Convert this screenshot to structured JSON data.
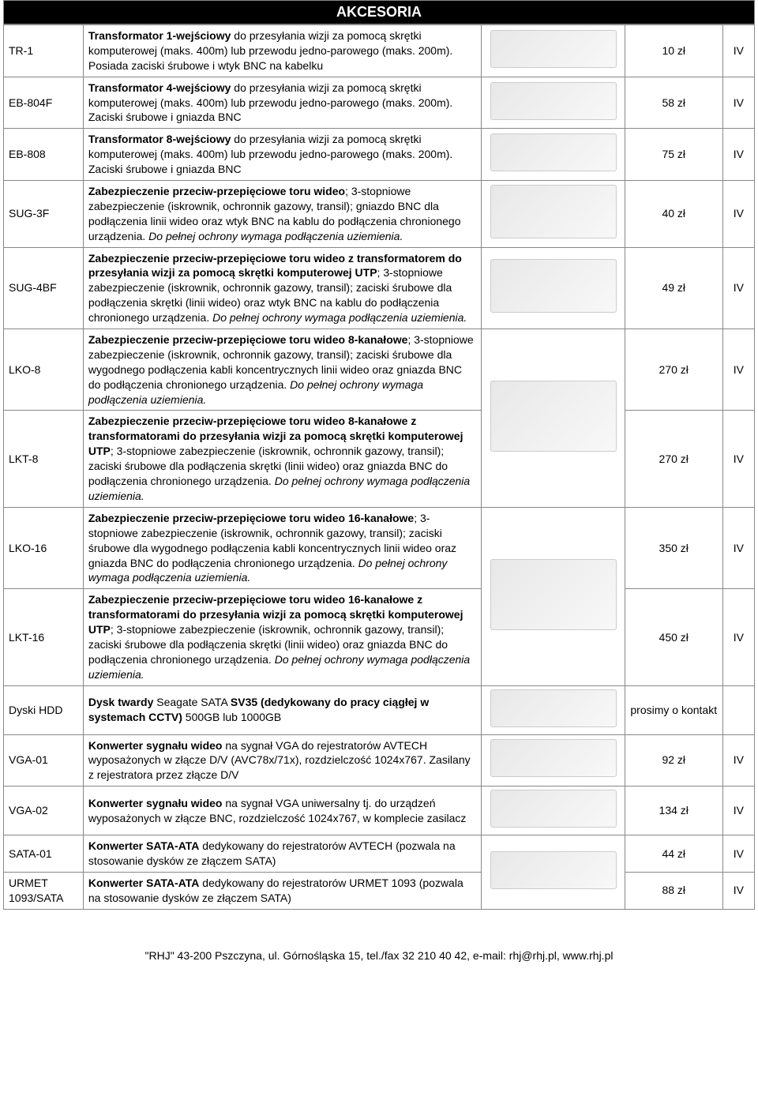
{
  "header": {
    "title": "AKCESORIA"
  },
  "rows": [
    {
      "code": "TR-1",
      "desc_bold": "Transformator 1-wejściowy",
      "desc_rest": " do przesyłania wizji za pomocą skrętki komputerowej (maks. 400m) lub przewodu jedno-parowego (maks. 200m). Posiada zaciski śrubowe i wtyk BNC na kabelku",
      "price": "10 zł",
      "cat": "IV",
      "img": true
    },
    {
      "code": "EB-804F",
      "desc_bold": "Transformator 4-wejściowy",
      "desc_rest": " do przesyłania wizji za pomocą skrętki komputerowej (maks. 400m) lub przewodu jedno-parowego (maks. 200m). Zaciski śrubowe i gniazda BNC",
      "price": "58 zł",
      "cat": "IV",
      "img": true
    },
    {
      "code": "EB-808",
      "desc_bold": "Transformator 8-wejściowy",
      "desc_rest": " do przesyłania wizji za pomocą skrętki komputerowej (maks. 400m) lub przewodu jedno-parowego (maks. 200m). Zaciski śrubowe i gniazda BNC",
      "price": "75 zł",
      "cat": "IV",
      "img": true
    },
    {
      "code": "SUG-3F",
      "desc_bold": "Zabezpieczenie przeciw-przepięciowe toru wideo",
      "desc_rest": "; 3-stopniowe zabezpieczenie (iskrownik, ochronnik gazowy, transil); gniazdo BNC dla podłączenia linii wideo oraz wtyk BNC na kablu do podłączenia chronionego urządzenia. ",
      "desc_italic": "Do pełnej ochrony wymaga podłączenia uziemienia.",
      "price": "40 zł",
      "cat": "IV",
      "img": true,
      "img_tall": true
    },
    {
      "code": "SUG-4BF",
      "desc_bold": "Zabezpieczenie przeciw-przepięciowe toru wideo z transformatorem do przesyłania wizji za pomocą skrętki komputerowej UTP",
      "desc_rest": "; 3-stopniowe zabezpieczenie (iskrownik, ochronnik gazowy, transil); zaciski śrubowe dla podłączenia skrętki (linii wideo) oraz wtyk BNC na kablu do podłączenia chronionego urządzenia. ",
      "desc_italic": "Do pełnej ochrony wymaga podłączenia uziemienia.",
      "price": "49 zł",
      "cat": "IV",
      "img": true,
      "img_tall": true
    },
    {
      "code": "LKO-8",
      "desc_bold": "Zabezpieczenie przeciw-przepięciowe toru wideo 8-kanałowe",
      "desc_rest": "; 3-stopniowe zabezpieczenie (iskrownik, ochronnik gazowy, transil); zaciski śrubowe dla wygodnego podłączenia kabli koncentrycznych linii wideo oraz gniazda BNC do podłączenia chronionego urządzenia. ",
      "desc_italic": "Do pełnej ochrony wymaga podłączenia uziemienia.",
      "price": "270 zł",
      "cat": "IV",
      "img_rowspan": 2,
      "img_big": true
    },
    {
      "code": "LKT-8",
      "desc_bold": "Zabezpieczenie przeciw-przepięciowe toru wideo 8-kanałowe z transformatorami do przesyłania wizji za pomocą skrętki komputerowej UTP",
      "desc_rest": "; 3-stopniowe zabezpieczenie (iskrownik, ochronnik gazowy, transil); zaciski śrubowe dla podłączenia skrętki (linii wideo) oraz gniazda BNC do podłączenia chronionego urządzenia. ",
      "desc_italic": "Do pełnej ochrony wymaga podłączenia uziemienia.",
      "price": "270 zł",
      "cat": "IV"
    },
    {
      "code": "LKO-16",
      "desc_bold": "Zabezpieczenie przeciw-przepięciowe toru wideo 16-kanałowe",
      "desc_rest": "; 3-stopniowe zabezpieczenie (iskrownik, ochronnik gazowy, transil); zaciski śrubowe dla wygodnego podłączenia kabli koncentrycznych linii wideo oraz gniazda BNC do podłączenia chronionego urządzenia. ",
      "desc_italic": "Do pełnej ochrony wymaga podłączenia uziemienia.",
      "price": "350 zł",
      "cat": "IV",
      "img_rowspan": 2,
      "img_big": true
    },
    {
      "code": "LKT-16",
      "desc_bold": "Zabezpieczenie przeciw-przepięciowe toru wideo 16-kanałowe z transformatorami do przesyłania wizji za pomocą skrętki komputerowej UTP",
      "desc_rest": "; 3-stopniowe zabezpieczenie (iskrownik, ochronnik gazowy, transil); zaciski śrubowe dla podłączenia skrętki (linii wideo) oraz gniazda BNC do podłączenia chronionego urządzenia. ",
      "desc_italic": "Do pełnej ochrony wymaga podłączenia uziemienia.",
      "price": "450 zł",
      "cat": "IV"
    },
    {
      "code": "Dyski HDD",
      "desc_bold": "Dysk twardy",
      "desc_rest": " Seagate SATA ",
      "desc_bold2": "SV35 (dedykowany do pracy ciągłej w systemach CCTV)",
      "desc_rest2": " 500GB lub 1000GB",
      "price": "prosimy o kontakt",
      "cat": "",
      "img": true
    },
    {
      "code": "VGA-01",
      "desc_bold": "Konwerter sygnału wideo",
      "desc_rest": " na sygnał VGA do rejestratorów AVTECH wyposażonych w złącze D/V (AVC78x/71x), rozdzielczość 1024x767. Zasilany z rejestratora przez złącze D/V",
      "price": "92 zł",
      "cat": "IV",
      "img": true
    },
    {
      "code": "VGA-02",
      "desc_bold": "Konwerter sygnału wideo",
      "desc_rest": " na sygnał VGA uniwersalny tj. do urządzeń wyposażonych w złącze BNC, rozdzielczość 1024x767, w komplecie zasilacz",
      "price": "134 zł",
      "cat": "IV",
      "img": true
    },
    {
      "code": "SATA-01",
      "desc_bold": "Konwerter SATA-ATA",
      "desc_rest": " dedykowany do rejestratorów AVTECH (pozwala na stosowanie dysków ze złączem SATA)",
      "price": "44 zł",
      "cat": "IV",
      "img_rowspan": 2
    },
    {
      "code": "URMET 1093/SATA",
      "desc_bold": "Konwerter SATA-ATA",
      "desc_rest": " dedykowany do rejestratorów URMET 1093 (pozwala na stosowanie dysków ze złączem SATA)",
      "price": "88 zł",
      "cat": "IV"
    }
  ],
  "footer": {
    "text": "\"RHJ\" 43-200 Pszczyna, ul. Górnośląska 15, tel./fax 32 210 40 42, e-mail: rhj@rhj.pl, www.rhj.pl"
  }
}
